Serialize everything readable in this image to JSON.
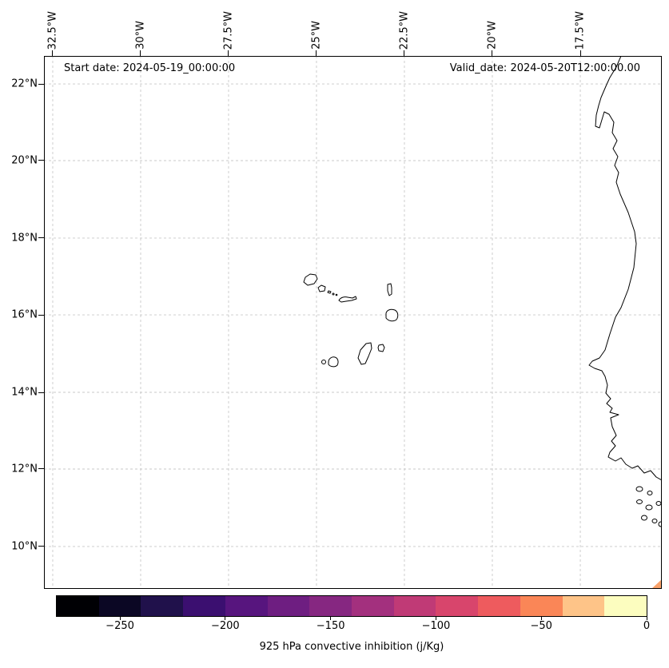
{
  "annotations": {
    "start": "Start date: 2024-05-19_00:00:00",
    "valid": "Valid_date: 2024-05-20T12:00:00.00"
  },
  "axes": {
    "lon_ticks": [
      {
        "label": "32.5°W",
        "f": 0.0142
      },
      {
        "label": "30°W",
        "f": 0.1565
      },
      {
        "label": "27.5°W",
        "f": 0.2988
      },
      {
        "label": "25°W",
        "f": 0.4411
      },
      {
        "label": "22.5°W",
        "f": 0.5834
      },
      {
        "label": "20°W",
        "f": 0.7257
      },
      {
        "label": "17.5°W",
        "f": 0.8681
      }
    ],
    "lat_ticks": [
      {
        "label": "22°N",
        "f": 0.0525
      },
      {
        "label": "20°N",
        "f": 0.1964
      },
      {
        "label": "18°N",
        "f": 0.3418
      },
      {
        "label": "16°N",
        "f": 0.4858
      },
      {
        "label": "14°N",
        "f": 0.6312
      },
      {
        "label": "12°N",
        "f": 0.7751
      },
      {
        "label": "10°N",
        "f": 0.9205
      }
    ]
  },
  "grid": {
    "color": "#c9c9c9"
  },
  "coast": {
    "color": "#000000"
  },
  "patch": {
    "color": "#f9a26b"
  },
  "colorbar": {
    "label": "925 hPa convective inhibition (j/Kg)",
    "colors": [
      "#000004",
      "#0b0724",
      "#20114b",
      "#3b0f70",
      "#57157e",
      "#6e1e81",
      "#862781",
      "#a3307e",
      "#c03a76",
      "#d8456c",
      "#ee5b5e",
      "#fa8657",
      "#fec488",
      "#fcfdbf"
    ],
    "ticks": [
      {
        "label": "−250",
        "f": 0.1071
      },
      {
        "label": "−200",
        "f": 0.2857
      },
      {
        "label": "−150",
        "f": 0.4643
      },
      {
        "label": "−100",
        "f": 0.6429
      },
      {
        "label": "−50",
        "f": 0.8214
      },
      {
        "label": "0",
        "f": 1.0
      }
    ]
  },
  "chart_data": {
    "type": "heatmap",
    "title": "",
    "annotations": [
      "Start date: 2024-05-19_00:00:00",
      "Valid_date: 2024-05-20T12:00:00.00"
    ],
    "x_ticks": [
      "32.5°W",
      "30°W",
      "27.5°W",
      "25°W",
      "22.5°W",
      "20°W",
      "17.5°W"
    ],
    "y_ticks": [
      "22°N",
      "20°N",
      "18°N",
      "16°N",
      "14°N",
      "12°N",
      "10°N"
    ],
    "grid": "dashed gray lat/lon graticule",
    "geography": "Cape Verde islands and West African coastline (Mauritania, Senegal, Gambia, Guinea-Bissau)",
    "colorbar": {
      "label": "925 hPa convective inhibition (j/Kg)",
      "tick_values": [
        -250,
        -200,
        -150,
        -100,
        -50,
        0
      ],
      "approx_range": [
        -280,
        0
      ],
      "colormap": "magma, 14 discrete segments"
    },
    "data_points": [
      {
        "region": "bottom-right (southeast) corner of map",
        "approx_value_jkg": -40,
        "rendered_as": "small salmon triangle"
      }
    ]
  }
}
